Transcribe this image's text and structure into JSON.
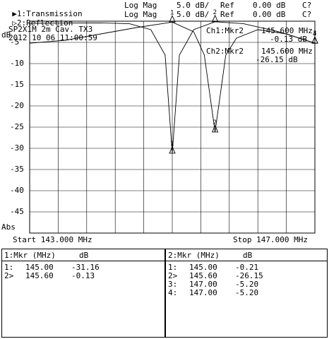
{
  "header": {
    "ch1": {
      "arrow": "▶",
      "label": "1:Transmission",
      "format": "Log Mag",
      "scale": "5.0 dB/",
      "ref_label": "Ref",
      "ref_value": "0.00 dB",
      "flag": "C?"
    },
    "ch2": {
      "arrow": "▷",
      "label": "2:Reflection",
      "format": "Log Mag",
      "scale": "5.0 dB/",
      "ref_label": "Ref",
      "ref_value": "0.00 dB",
      "flag": "C?"
    }
  },
  "annotation": {
    "title": "SP2X1M 2m Cav. TX3",
    "datetime": "2012 10 06 11:00:59"
  },
  "marker_readout": {
    "ch1": {
      "label": "Ch1:Mkr2",
      "freq": "145.600 MHz",
      "value": "-0.13 dB"
    },
    "ch2": {
      "label": "Ch2:Mkr2",
      "freq": "145.600 MHz",
      "value": "-26.15 dB"
    }
  },
  "axis": {
    "y_unit": "dB",
    "y_ticks": [
      "-5",
      "-10",
      "-15",
      "-20",
      "-25",
      "-30",
      "-35",
      "-40",
      "-45"
    ],
    "y_bottom_label": "Abs",
    "start": "Start 143.000 MHz",
    "stop": "Stop 147.000 MHz"
  },
  "chart_data": {
    "type": "line",
    "xlabel": "",
    "ylabel": "dB",
    "xlim": [
      143.0,
      147.0
    ],
    "ylim": [
      -50,
      0
    ],
    "grid": true,
    "series": [
      {
        "name": "1:Transmission",
        "x": [
          143.0,
          143.5,
          144.0,
          144.4,
          144.7,
          144.9,
          145.0,
          145.1,
          145.3,
          145.6,
          146.0,
          146.5,
          147.0
        ],
        "y": [
          -0.5,
          -0.45,
          -0.4,
          -0.6,
          -2.0,
          -8.0,
          -31.16,
          -8.0,
          -2.0,
          -0.13,
          -0.6,
          -2.5,
          -5.2
        ]
      },
      {
        "name": "2:Reflection",
        "x": [
          143.0,
          143.5,
          144.0,
          144.5,
          145.0,
          145.3,
          145.45,
          145.6,
          145.75,
          145.9,
          146.2,
          146.6,
          147.0
        ],
        "y": [
          -5.2,
          -4.5,
          -3.0,
          -1.5,
          -0.21,
          -2.5,
          -8.0,
          -26.15,
          -8.0,
          -4.0,
          -2.0,
          -3.0,
          -5.2
        ]
      }
    ],
    "markers": [
      {
        "series": "1:Transmission",
        "id": "1",
        "x": 145.0,
        "y": -31.16
      },
      {
        "series": "1:Transmission",
        "id": "2",
        "x": 145.6,
        "y": -0.13
      },
      {
        "series": "2:Reflection",
        "id": "1",
        "x": 145.0,
        "y": -0.21
      },
      {
        "series": "2:Reflection",
        "id": "2",
        "x": 145.6,
        "y": -26.15
      },
      {
        "series": "2:Reflection",
        "id": "3",
        "x": 147.0,
        "y": -5.2
      },
      {
        "series": "2:Reflection",
        "id": "4",
        "x": 147.0,
        "y": -5.2
      }
    ]
  },
  "table1": {
    "title": "1:Mkr (MHz)     dB",
    "rows": [
      {
        "id": "1:",
        "freq": "145.00",
        "db": "-31.16"
      },
      {
        "id": "2>",
        "freq": "145.60",
        "db": "-0.13"
      }
    ]
  },
  "table2": {
    "title": "2:Mkr (MHz)     dB",
    "rows": [
      {
        "id": "1:",
        "freq": "145.00",
        "db": "-0.21"
      },
      {
        "id": "2>",
        "freq": "145.60",
        "db": "-26.15"
      },
      {
        "id": "3:",
        "freq": "147.00",
        "db": "-5.20"
      },
      {
        "id": "4:",
        "freq": "147.00",
        "db": "-5.20"
      }
    ]
  }
}
